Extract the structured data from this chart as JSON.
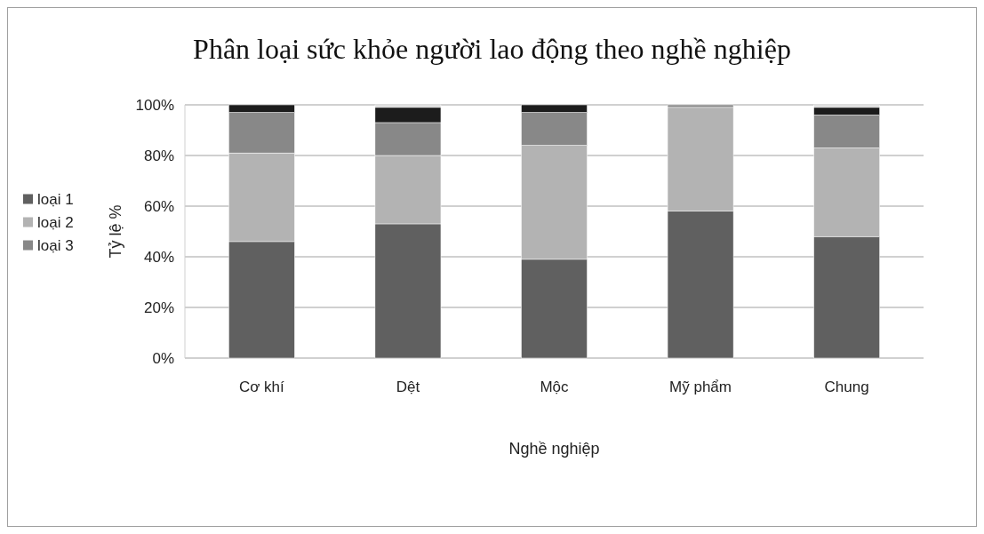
{
  "chart_data": {
    "type": "bar",
    "stacked": true,
    "title": "Phân loại sức khỏe người lao động theo nghề nghiệp",
    "xlabel": "Nghề nghiệp",
    "ylabel": "Tỷ lệ %",
    "categories": [
      "Cơ khí",
      "Dệt",
      "Mộc",
      "Mỹ phẩm",
      "Chung"
    ],
    "series": [
      {
        "name": "loại 1",
        "color": "#606060",
        "values": [
          46,
          53,
          39,
          58,
          48
        ]
      },
      {
        "name": "loại 2",
        "color": "#b3b3b3",
        "values": [
          35,
          27,
          45,
          41,
          35
        ]
      },
      {
        "name": "loại 3",
        "color": "#888888",
        "values": [
          16,
          13,
          13,
          1,
          13
        ]
      },
      {
        "color": "#1c1c1c",
        "values": [
          3,
          6,
          3,
          null,
          3
        ]
      },
      {
        "color": "#d9d9d9",
        "values": [
          null,
          1,
          null,
          null,
          1
        ]
      }
    ],
    "ylim": [
      0,
      100
    ],
    "yticks": [
      {
        "value": 0,
        "label": "0%"
      },
      {
        "value": 20,
        "label": "20%"
      },
      {
        "value": 40,
        "label": "40%"
      },
      {
        "value": 60,
        "label": "60%"
      },
      {
        "value": 80,
        "label": "80%"
      },
      {
        "value": 100,
        "label": "100%"
      }
    ],
    "grid": "y",
    "legend": "left"
  }
}
